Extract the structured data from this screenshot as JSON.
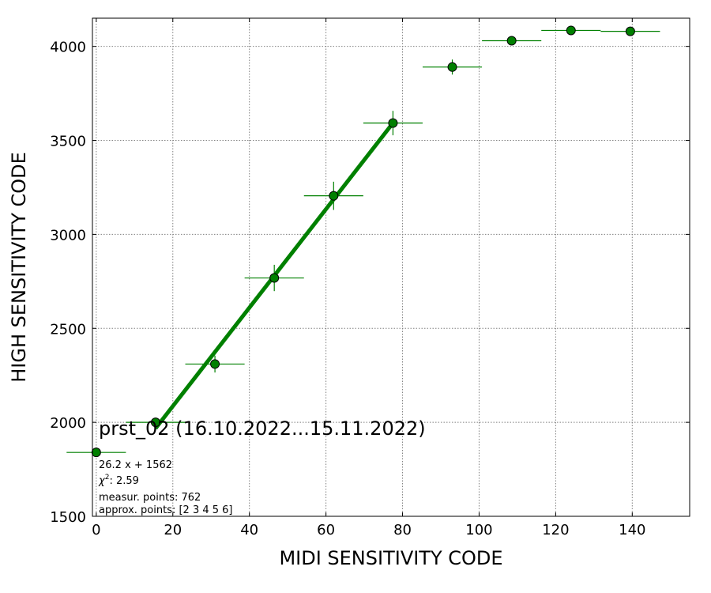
{
  "chart_data": {
    "type": "scatter",
    "title": "prst_02 (16.10.2022...15.11.2022)",
    "xlabel": "MIDI SENSITIVITY CODE",
    "ylabel": "HIGH SENSITIVITY CODE",
    "xlim": [
      -1,
      155
    ],
    "ylim": [
      1500,
      4150
    ],
    "xticks": [
      0,
      20,
      40,
      60,
      80,
      100,
      120,
      140
    ],
    "yticks": [
      1500,
      2000,
      2500,
      3000,
      3500,
      4000
    ],
    "grid": true,
    "series": [
      {
        "color": "#008000",
        "x": [
          0,
          15.5,
          31,
          46.5,
          62,
          77.5,
          93,
          108.5,
          124,
          139.5
        ],
        "y": [
          1840,
          2000,
          2310,
          2768,
          3205,
          3592,
          3890,
          4030,
          4085,
          4080
        ],
        "x_err": [
          7.75,
          7.75,
          7.75,
          7.75,
          7.75,
          7.75,
          7.75,
          7.75,
          7.75,
          7.75
        ],
        "y_err": [
          0,
          15,
          45,
          70,
          75,
          65,
          40,
          10,
          5,
          5
        ]
      }
    ],
    "fit": {
      "slope": 26.2,
      "intercept": 1562,
      "x_range": [
        15.5,
        77.5
      ],
      "color": "#008000"
    },
    "annotations": {
      "equation": "26.2 x + 1562",
      "chi2_value": "2.59",
      "measur": "measur. points: 762",
      "approx": "approx. points: [2 3 4 5 6]"
    }
  }
}
